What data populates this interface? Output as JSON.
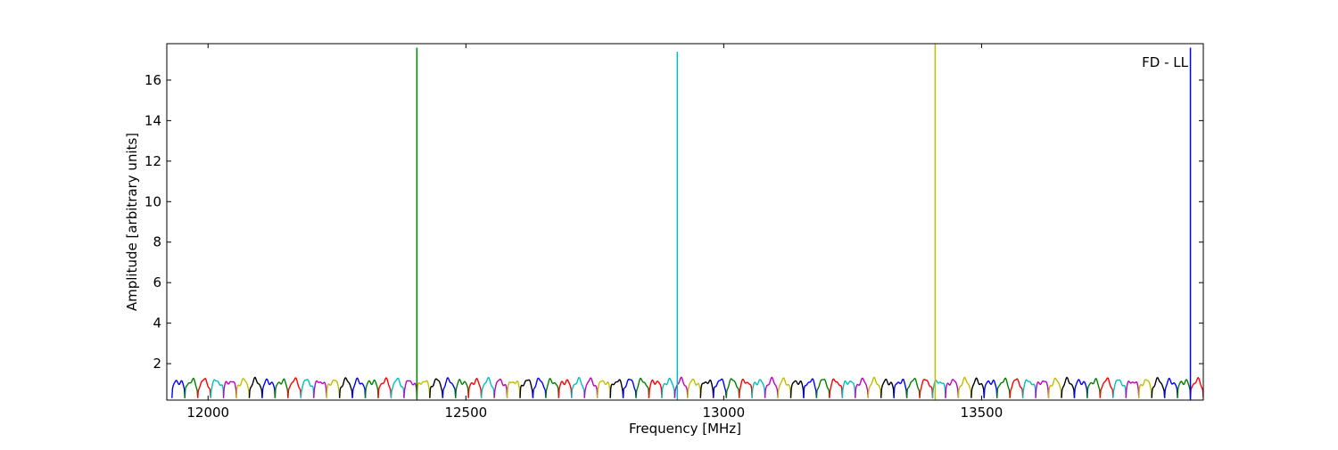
{
  "chart_data": {
    "type": "line",
    "title": "",
    "xlabel": "Frequency [MHz]",
    "ylabel": "Amplitude [arbitrary units]",
    "annotation": "FD - LL",
    "xlim": [
      11920,
      13930
    ],
    "ylim": [
      0.2,
      17.8
    ],
    "xticks": [
      12000,
      12500,
      13000,
      13500
    ],
    "yticks": [
      2,
      4,
      6,
      8,
      10,
      12,
      14,
      16
    ],
    "grid": false,
    "legend": "none",
    "band_start": 11930,
    "band_width": 25,
    "band_count": 80,
    "band_level": 1.15,
    "band_floor": 0.3,
    "color_cycle": [
      "#0000ff",
      "#008000",
      "#ff0000",
      "#00bfbf",
      "#bf00bf",
      "#bfbf00",
      "#000000"
    ],
    "spikes": [
      {
        "x": 12405,
        "y": 17.6,
        "color": "#008000"
      },
      {
        "x": 12910,
        "y": 17.4,
        "color": "#00bfbf"
      },
      {
        "x": 13410,
        "y": 17.8,
        "color": "#bfbf00"
      },
      {
        "x": 13905,
        "y": 17.6,
        "color": "#0000ff"
      }
    ]
  }
}
